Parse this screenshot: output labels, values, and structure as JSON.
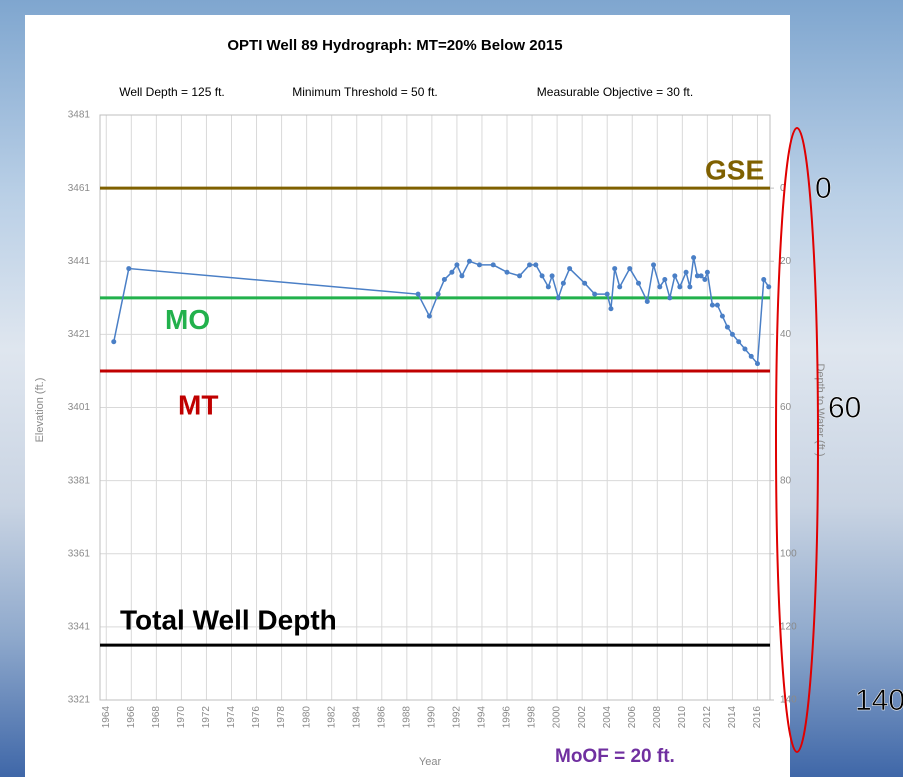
{
  "chart_data": {
    "type": "line",
    "title": "OPTI Well 89 Hydrograph: MT=20% Below 2015",
    "subtitles": [
      "Well Depth = 125 ft.",
      "Minimum Threshold = 50 ft.",
      "Measurable Objective = 30 ft."
    ],
    "x_label": "Year",
    "y_label": "Elevation (ft.)",
    "y2_label": "Depth to Water (ft.)",
    "xlim": [
      1963.5,
      2017
    ],
    "xticks": [
      1964,
      1966,
      1968,
      1970,
      1972,
      1974,
      1976,
      1978,
      1980,
      1982,
      1984,
      1986,
      1988,
      1990,
      1992,
      1994,
      1996,
      1998,
      2000,
      2002,
      2004,
      2006,
      2008,
      2010,
      2012,
      2014,
      2016
    ],
    "ylim": [
      3321,
      3481
    ],
    "yticks": [
      3321,
      3341,
      3361,
      3381,
      3401,
      3421,
      3441,
      3461,
      3481
    ],
    "y2lim": [
      140,
      -20
    ],
    "y2ticks": [
      0,
      20,
      40,
      60,
      80,
      100,
      120,
      140
    ],
    "grid": true,
    "series": [
      {
        "color": "#4a7fc6",
        "x": [
          1964.6,
          1965.8,
          1988.9,
          1989.8,
          1990.5,
          1991.0,
          1991.6,
          1992.0,
          1992.4,
          1993.0,
          1993.8,
          1994.9,
          1996.0,
          1997.0,
          1997.8,
          1998.3,
          1998.8,
          1999.3,
          1999.6,
          2000.1,
          2000.5,
          2001.0,
          2002.2,
          2003.0,
          2004.0,
          2004.3,
          2004.6,
          2005.0,
          2005.8,
          2006.5,
          2007.2,
          2007.7,
          2008.2,
          2008.6,
          2009.0,
          2009.4,
          2009.8,
          2010.3,
          2010.6,
          2010.9,
          2011.2,
          2011.5,
          2011.8,
          2012.0,
          2012.4,
          2012.8,
          2013.2,
          2013.6,
          2014.0,
          2014.5,
          2015.0,
          2015.5,
          2016.0,
          2016.5,
          2016.9
        ],
        "values": [
          3419,
          3439,
          3432,
          3426,
          3432,
          3436,
          3438,
          3440,
          3437,
          3441,
          3440,
          3440,
          3438,
          3437,
          3440,
          3440,
          3437,
          3434,
          3437,
          3431,
          3435,
          3439,
          3435,
          3432,
          3432,
          3428,
          3439,
          3434,
          3439,
          3435,
          3430,
          3440,
          3434,
          3436,
          3431,
          3437,
          3434,
          3438,
          3434,
          3442,
          3437,
          3437,
          3436,
          3438,
          3429,
          3429,
          3426,
          3423,
          3421,
          3419,
          3417,
          3415,
          3413,
          3436,
          3434
        ]
      }
    ],
    "reference_lines": [
      {
        "label": "GSE",
        "value": 3461,
        "color": "#7f6000"
      },
      {
        "label": "MO",
        "value": 3431,
        "color": "#22b14c"
      },
      {
        "label": "MT",
        "value": 3411,
        "color": "#c00000"
      },
      {
        "label": "Total Well Depth",
        "value": 3336,
        "color": "#000000"
      }
    ],
    "callouts": [
      0,
      60,
      140
    ],
    "callout_color": "#e00000",
    "annotation": "MoOF = 20 ft.",
    "annotation_color": "#7030a0"
  }
}
